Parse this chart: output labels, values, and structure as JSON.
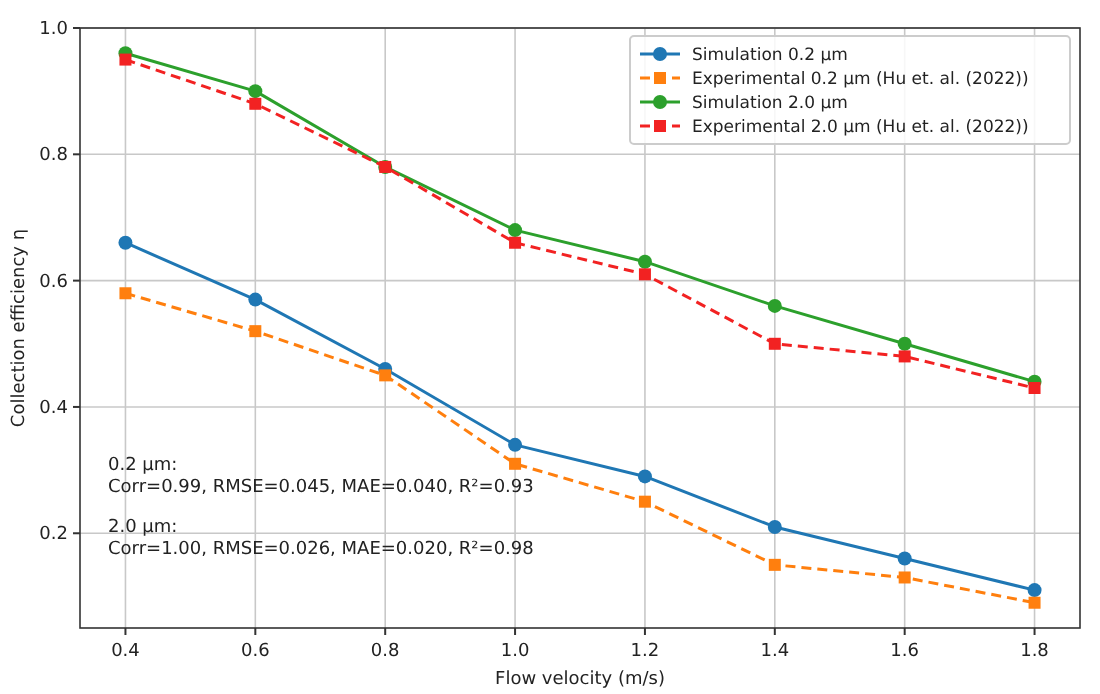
{
  "chart_data": {
    "type": "line",
    "xlabel": "Flow velocity (m/s)",
    "ylabel": "Collection efficiency η",
    "x": [
      0.4,
      0.6,
      0.8,
      1.0,
      1.2,
      1.4,
      1.6,
      1.8
    ],
    "series": [
      {
        "name": "Simulation 0.2 μm",
        "color": "#1f77b4",
        "marker": "circle",
        "line_style": "solid",
        "values": [
          0.66,
          0.57,
          0.46,
          0.34,
          0.29,
          0.21,
          0.16,
          0.11
        ]
      },
      {
        "name": "Experimental 0.2 μm (Hu et. al. (2022))",
        "color": "#ff7f0e",
        "marker": "square",
        "line_style": "dashed",
        "values": [
          0.58,
          0.52,
          0.45,
          0.31,
          0.25,
          0.15,
          0.13,
          0.09
        ]
      },
      {
        "name": "Simulation 2.0 μm",
        "color": "#2ca02c",
        "marker": "circle",
        "line_style": "solid",
        "values": [
          0.96,
          0.9,
          0.78,
          0.68,
          0.63,
          0.56,
          0.5,
          0.44
        ]
      },
      {
        "name": "Experimental 2.0 μm (Hu et. al. (2022))",
        "color": "#f22222",
        "marker": "square",
        "line_style": "dashed",
        "values": [
          0.95,
          0.88,
          0.78,
          0.66,
          0.61,
          0.5,
          0.48,
          0.43
        ]
      }
    ],
    "xlim": [
      0.33,
      1.87
    ],
    "xticks": [
      {
        "value": 0.4,
        "label": "0.4"
      },
      {
        "value": 0.6,
        "label": "0.6"
      },
      {
        "value": 0.8,
        "label": "0.8"
      },
      {
        "value": 1.0,
        "label": "1.0"
      },
      {
        "value": 1.2,
        "label": "1.2"
      },
      {
        "value": 1.4,
        "label": "1.4"
      },
      {
        "value": 1.6,
        "label": "1.6"
      },
      {
        "value": 1.8,
        "label": "1.8"
      }
    ],
    "ylim": [
      0.05,
      1.0
    ],
    "yticks": [
      {
        "value": 0.2,
        "label": "0.2"
      },
      {
        "value": 0.4,
        "label": "0.4"
      },
      {
        "value": 0.6,
        "label": "0.6"
      },
      {
        "value": 0.8,
        "label": "0.8"
      },
      {
        "value": 1.0,
        "label": "1.0"
      }
    ],
    "grid": true,
    "legend": "top right",
    "annotations": [
      "0.2 μm:\nCorr=0.99, RMSE=0.045, MAE=0.040, R²=0.93",
      "2.0 μm:\nCorr=1.00, RMSE=0.026, MAE=0.020, R²=0.98"
    ]
  }
}
